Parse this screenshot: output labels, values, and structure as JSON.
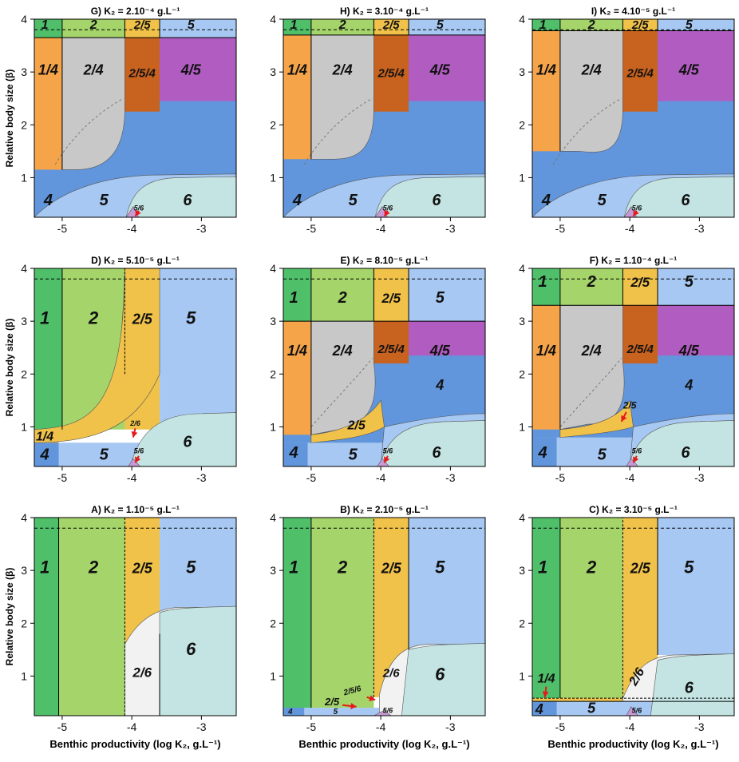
{
  "colors": {
    "c1": "#4fbf6a",
    "c2": "#a4d46a",
    "c25": "#f0c24a",
    "c5": "#a6c8f2",
    "c14": "#f5a44a",
    "c24": "#c8c8c8",
    "c254": "#c8621f",
    "c45": "#b05cc0",
    "c4": "#6196dc",
    "c6": "#c3e4e2",
    "c56": "#c79ad6",
    "c26": "#f2f2f2",
    "arrow": "#e41a1c"
  },
  "chart_data": {
    "type": "heatmap",
    "x_ticks": [
      "-5",
      "-4",
      "-3"
    ],
    "y_ticks": [
      "1",
      "2",
      "3",
      "4"
    ],
    "x_domain": [
      -5.4,
      -2.5
    ],
    "y_domain": [
      0.25,
      4.0
    ],
    "xlabel": "Benthic productivity (log K₂, g.L⁻¹)",
    "ylabel": "Relative body size (β)",
    "panels": [
      {
        "id": "G",
        "title": "G) K₂ = 2.10⁻⁴ g.L⁻¹",
        "row": 0,
        "col": 0,
        "regions": [
          "1",
          "2",
          "2/5",
          "5",
          "1/4",
          "2/4",
          "2/5/4",
          "4/5",
          "4",
          "5",
          "5/6",
          "6"
        ],
        "vlines": [
          -5.0,
          -4.1,
          -3.6
        ],
        "hline_top": 3.65,
        "band_bottom": 1.15,
        "dash": 3.8
      },
      {
        "id": "H",
        "title": "H) K₂ = 3.10⁻⁴ g.L⁻¹",
        "row": 0,
        "col": 1,
        "regions": [
          "1",
          "2",
          "2/5",
          "5",
          "1/4",
          "2/4",
          "2/5/4",
          "4/5",
          "4",
          "5",
          "5/6",
          "6"
        ],
        "vlines": [
          -5.0,
          -4.1,
          -3.6
        ],
        "hline_top": 3.7,
        "band_bottom": 1.35,
        "dash": 3.8
      },
      {
        "id": "I",
        "title": "I) K₂ = 4.10⁻⁵ g.L⁻¹",
        "row": 0,
        "col": 2,
        "regions": [
          "1",
          "2",
          "2/5",
          "5",
          "1/4",
          "2/4",
          "2/5/4",
          "4/5",
          "4",
          "5",
          "5/6",
          "6"
        ],
        "vlines": [
          -5.0,
          -4.1,
          -3.6
        ],
        "hline_top": 3.78,
        "band_bottom": 1.5,
        "dash": 3.8
      },
      {
        "id": "D",
        "title": "D) K₂ = 5.10⁻⁵ g.L⁻¹",
        "row": 1,
        "col": 0,
        "regions": [
          "1",
          "2",
          "2/5",
          "5",
          "2/6",
          "1/4",
          "4",
          "5",
          "5/6",
          "6"
        ],
        "vlines": [
          -5.0,
          -4.1,
          -3.6
        ],
        "dash": 3.8
      },
      {
        "id": "E",
        "title": "E) K₂ = 8.10⁻⁵ g.L⁻¹",
        "row": 1,
        "col": 1,
        "regions": [
          "1",
          "2",
          "2/5",
          "5",
          "1/4",
          "2/4",
          "2/5/4",
          "4/5",
          "4",
          "2/5",
          "4",
          "5",
          "5/6",
          "6"
        ],
        "vlines": [
          -5.0,
          -4.1,
          -3.6
        ],
        "dash": 3.8
      },
      {
        "id": "F",
        "title": "F) K₂ = 1.10⁻⁴ g.L⁻¹",
        "row": 1,
        "col": 2,
        "regions": [
          "1",
          "2",
          "2/5",
          "5",
          "1/4",
          "2/4",
          "2/5/4",
          "4/5",
          "4",
          "2/5",
          "4",
          "5",
          "5/6",
          "6"
        ],
        "vlines": [
          -5.0,
          -4.1,
          -3.6
        ],
        "dash": 3.8
      },
      {
        "id": "A",
        "title": "A) K₂ = 1.10⁻⁵ g.L⁻¹",
        "row": 2,
        "col": 0,
        "regions": [
          "1",
          "2",
          "2/5",
          "5",
          "2/6",
          "6"
        ],
        "vlines": [
          -5.05,
          -4.1,
          -3.6
        ],
        "dash": 3.8
      },
      {
        "id": "B",
        "title": "B) K₂ = 2.10⁻⁵ g.L⁻¹",
        "row": 2,
        "col": 1,
        "regions": [
          "1",
          "2",
          "2/5",
          "5",
          "2/6",
          "6",
          "2/5/6",
          "2/5",
          "4",
          "5",
          "5/6"
        ],
        "vlines": [
          -5.0,
          -4.1,
          -3.6
        ],
        "dash": 3.8
      },
      {
        "id": "C",
        "title": "C) K₂ = 3.10⁻⁵ g.L⁻¹",
        "row": 2,
        "col": 2,
        "regions": [
          "1",
          "2",
          "2/5",
          "5",
          "2/6",
          "6",
          "1/4",
          "4",
          "5",
          "5/6"
        ],
        "vlines": [
          -5.0,
          -4.1,
          -3.6
        ],
        "dash": 3.8
      }
    ]
  }
}
